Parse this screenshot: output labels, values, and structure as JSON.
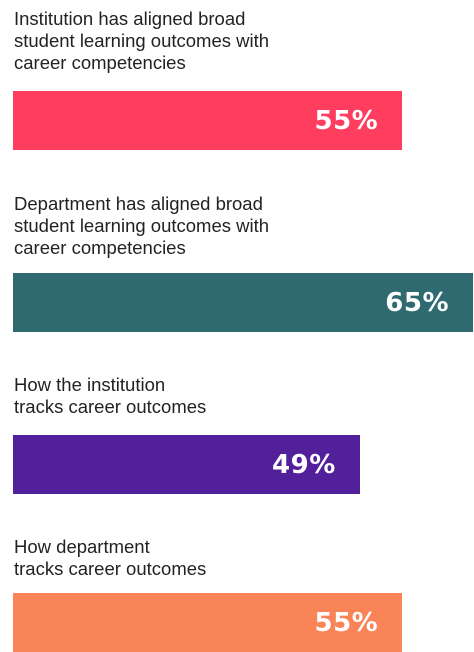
{
  "chart_data": {
    "type": "bar",
    "orientation": "horizontal",
    "xlim": [
      0,
      65
    ],
    "categories": [
      [
        "Institution has aligned broad",
        "student learning outcomes with",
        "career competencies"
      ],
      [
        "Department has aligned broad",
        "student learning outcomes with",
        "career competencies"
      ],
      [
        "How the institution",
        "tracks career outcomes"
      ],
      [
        "How department",
        "tracks career outcomes"
      ]
    ],
    "values": [
      55,
      65,
      49,
      55
    ],
    "value_labels": [
      "55%",
      "65%",
      "49%",
      "55%"
    ],
    "colors": [
      "#ff3d5f",
      "#2e6a70",
      "#53209b",
      "#f98457"
    ]
  }
}
